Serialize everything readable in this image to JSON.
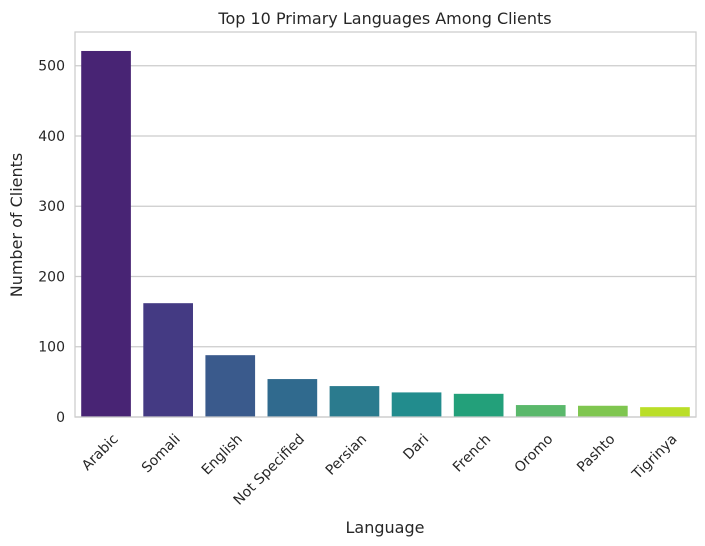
{
  "chart_data": {
    "type": "bar",
    "title": "Top 10 Primary Languages Among Clients",
    "xlabel": "Language",
    "ylabel": "Number of Clients",
    "categories": [
      "Arabic",
      "Somali",
      "English",
      "Not Specified",
      "Persian",
      "Dari",
      "French",
      "Oromo",
      "Pashto",
      "Tigrinya"
    ],
    "values": [
      521,
      162,
      88,
      54,
      44,
      35,
      33,
      17,
      16,
      14
    ],
    "ylim": [
      0,
      548
    ],
    "yticks": [
      0,
      100,
      200,
      300,
      400,
      500
    ],
    "grid": true,
    "colors": [
      "#482474",
      "#443a83",
      "#3a5a8c",
      "#306a8e",
      "#2b7b8e",
      "#228c8d",
      "#23a07a",
      "#5ab86b",
      "#7fc650",
      "#bade28"
    ]
  }
}
